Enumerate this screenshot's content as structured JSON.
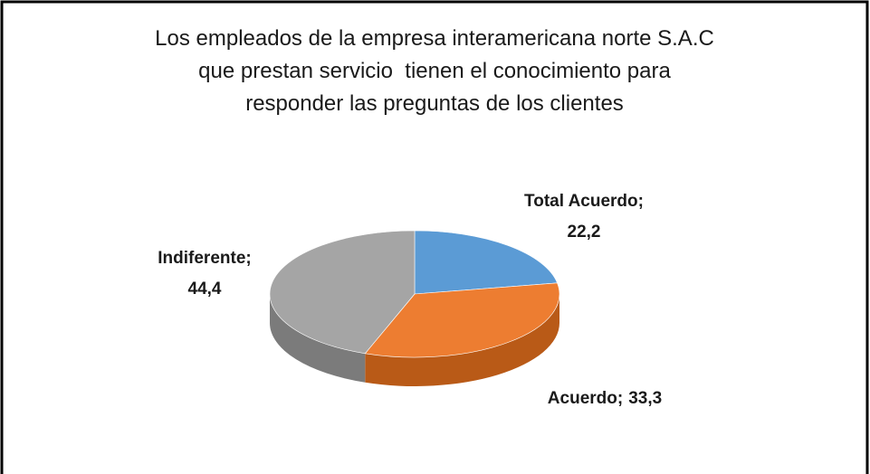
{
  "chart_data": {
    "type": "pie",
    "title": "Los empleados de la empresa interamericana norte S.A.C\nque prestan servicio  tienen el conocimiento para\nresponder las preguntas de los clientes",
    "categories": [
      "Total Acuerdo",
      "Acuerdo",
      "Indiferente"
    ],
    "values": [
      22.2,
      33.3,
      44.4
    ],
    "value_labels": [
      "22,2",
      "33,3",
      "44,4"
    ],
    "label_separator": ";",
    "colors": [
      "#5b9bd5",
      "#ed7d31",
      "#a5a5a5"
    ],
    "side_colors": [
      "#3e76aa",
      "#b95a17",
      "#7b7b7b"
    ]
  }
}
